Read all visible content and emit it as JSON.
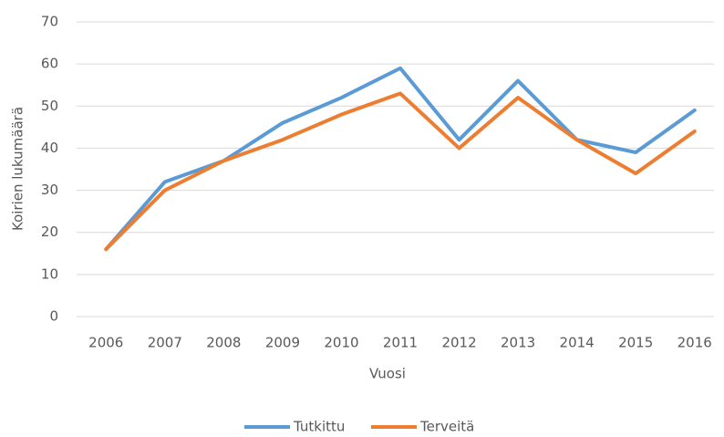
{
  "chart_data": {
    "type": "line",
    "x_label": "Vuosi",
    "y_label": "Koirien lukumäärä",
    "categories": [
      "2006",
      "2007",
      "2008",
      "2009",
      "2010",
      "2011",
      "2012",
      "2013",
      "2014",
      "2015",
      "2016"
    ],
    "series": [
      {
        "name": "Tutkittu",
        "color": "#5b9bd5",
        "values": [
          16,
          32,
          37,
          46,
          52,
          59,
          42,
          56,
          42,
          39,
          49
        ]
      },
      {
        "name": "Terveitä",
        "color": "#ed7d31",
        "values": [
          16,
          30,
          37,
          42,
          48,
          53,
          40,
          52,
          42,
          34,
          44
        ]
      }
    ],
    "ylim": [
      0,
      70
    ],
    "yticks": [
      0,
      10,
      20,
      30,
      40,
      50,
      60,
      70
    ],
    "grid": true,
    "legend": "bottom"
  }
}
